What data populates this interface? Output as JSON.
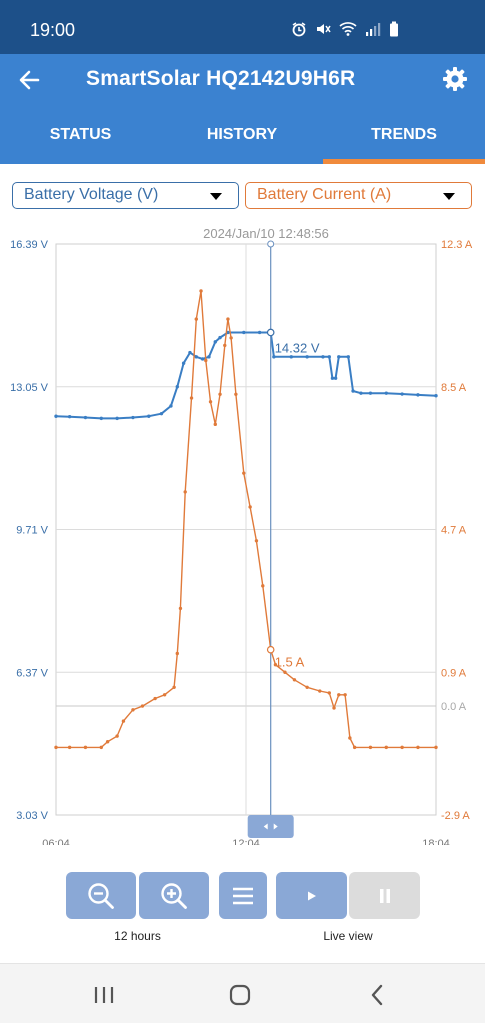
{
  "status_bar": {
    "time": "19:00",
    "icons": [
      "alarm-icon",
      "mute-icon",
      "wifi-icon",
      "signal-icon",
      "battery-icon"
    ]
  },
  "app_bar": {
    "title": "SmartSolar HQ2142U9H6R",
    "back_icon": "arrow-back-icon",
    "settings_icon": "gear-icon"
  },
  "tabs": [
    {
      "label": "STATUS",
      "active": false
    },
    {
      "label": "HISTORY",
      "active": false
    },
    {
      "label": "TRENDS",
      "active": true
    }
  ],
  "selectors": {
    "left": {
      "label": "Battery Voltage (V)",
      "color": "#3a6fa8"
    },
    "right": {
      "label": "Battery Current (A)",
      "color": "#e07a3a"
    }
  },
  "chart_data": {
    "type": "line",
    "cursor_timestamp": "2024/Jan/10 12:48:56",
    "cursor_hour": 12.85,
    "cursor_labels": {
      "voltage": "14.32 V",
      "current": "1.5 A"
    },
    "x_ticks": [
      {
        "label": "06:04",
        "hour": 6.07
      },
      {
        "label": "12:04",
        "hour": 12.07
      },
      {
        "label": "18:04",
        "hour": 18.07
      }
    ],
    "xlim": [
      6.07,
      18.07
    ],
    "y_left": {
      "ylim": [
        3.03,
        16.39
      ],
      "ticks": [
        {
          "label": "16.39 V",
          "value": 16.39
        },
        {
          "label": "13.05 V",
          "value": 13.05
        },
        {
          "label": "9.71 V",
          "value": 9.71
        },
        {
          "label": "6.37 V",
          "value": 6.37
        },
        {
          "label": "3.03 V",
          "value": 3.03
        }
      ]
    },
    "y_right": {
      "ylim": [
        -2.9,
        12.3
      ],
      "ticks": [
        {
          "label": "12.3 A",
          "value": 12.3
        },
        {
          "label": "8.5 A",
          "value": 8.5
        },
        {
          "label": "4.7 A",
          "value": 4.7
        },
        {
          "label": "0.9 A",
          "value": 0.9
        },
        {
          "label": "0.0 A",
          "value": 0.0
        },
        {
          "label": "-2.9 A",
          "value": -2.9
        }
      ]
    },
    "series": [
      {
        "name": "Battery Voltage (V)",
        "axis": "left",
        "color": "#3a7ec4",
        "points": [
          [
            6.07,
            12.36
          ],
          [
            6.5,
            12.35
          ],
          [
            7.0,
            12.33
          ],
          [
            7.5,
            12.31
          ],
          [
            8.0,
            12.31
          ],
          [
            8.5,
            12.33
          ],
          [
            9.0,
            12.36
          ],
          [
            9.4,
            12.42
          ],
          [
            9.7,
            12.6
          ],
          [
            9.9,
            13.05
          ],
          [
            10.1,
            13.6
          ],
          [
            10.3,
            13.85
          ],
          [
            10.5,
            13.75
          ],
          [
            10.7,
            13.7
          ],
          [
            10.9,
            13.75
          ],
          [
            11.1,
            14.1
          ],
          [
            11.25,
            14.2
          ],
          [
            11.5,
            14.32
          ],
          [
            12.0,
            14.32
          ],
          [
            12.5,
            14.32
          ],
          [
            12.85,
            14.32
          ],
          [
            12.95,
            13.75
          ],
          [
            13.5,
            13.75
          ],
          [
            14.0,
            13.75
          ],
          [
            14.5,
            13.75
          ],
          [
            14.7,
            13.75
          ],
          [
            14.8,
            13.25
          ],
          [
            14.9,
            13.25
          ],
          [
            15.0,
            13.75
          ],
          [
            15.3,
            13.75
          ],
          [
            15.45,
            12.95
          ],
          [
            15.7,
            12.9
          ],
          [
            16.0,
            12.9
          ],
          [
            16.5,
            12.9
          ],
          [
            17.0,
            12.88
          ],
          [
            17.5,
            12.86
          ],
          [
            18.07,
            12.84
          ]
        ]
      },
      {
        "name": "Battery Current (A)",
        "axis": "right",
        "color": "#e07a3a",
        "points": [
          [
            6.07,
            -1.1
          ],
          [
            6.5,
            -1.1
          ],
          [
            7.0,
            -1.1
          ],
          [
            7.5,
            -1.1
          ],
          [
            7.7,
            -0.95
          ],
          [
            8.0,
            -0.8
          ],
          [
            8.2,
            -0.4
          ],
          [
            8.5,
            -0.1
          ],
          [
            8.8,
            0.0
          ],
          [
            9.2,
            0.2
          ],
          [
            9.5,
            0.3
          ],
          [
            9.8,
            0.5
          ],
          [
            9.9,
            1.4
          ],
          [
            10.0,
            2.6
          ],
          [
            10.15,
            5.7
          ],
          [
            10.35,
            8.2
          ],
          [
            10.5,
            10.3
          ],
          [
            10.65,
            11.05
          ],
          [
            10.8,
            9.2
          ],
          [
            10.95,
            8.1
          ],
          [
            11.1,
            7.5
          ],
          [
            11.25,
            8.3
          ],
          [
            11.4,
            9.6
          ],
          [
            11.5,
            10.3
          ],
          [
            11.6,
            9.8
          ],
          [
            11.75,
            8.3
          ],
          [
            12.0,
            6.2
          ],
          [
            12.2,
            5.3
          ],
          [
            12.4,
            4.4
          ],
          [
            12.6,
            3.2
          ],
          [
            12.85,
            1.5
          ],
          [
            13.0,
            1.1
          ],
          [
            13.3,
            0.9
          ],
          [
            13.6,
            0.7
          ],
          [
            14.0,
            0.5
          ],
          [
            14.4,
            0.4
          ],
          [
            14.7,
            0.35
          ],
          [
            14.85,
            -0.05
          ],
          [
            15.0,
            0.3
          ],
          [
            15.2,
            0.3
          ],
          [
            15.35,
            -0.85
          ],
          [
            15.5,
            -1.1
          ],
          [
            16.0,
            -1.1
          ],
          [
            16.5,
            -1.1
          ],
          [
            17.0,
            -1.1
          ],
          [
            17.5,
            -1.1
          ],
          [
            18.07,
            -1.1
          ]
        ]
      }
    ]
  },
  "controls": {
    "zoom_out_icon": "zoom-out-icon",
    "zoom_in_icon": "zoom-in-icon",
    "menu_icon": "menu-icon",
    "play_icon": "play-icon",
    "pause_icon": "pause-icon",
    "zoom_caption": "12 hours",
    "live_caption": "Live view"
  },
  "nav": {
    "recents_icon": "recents-icon",
    "home_icon": "home-icon",
    "back_icon": "nav-back-icon"
  }
}
